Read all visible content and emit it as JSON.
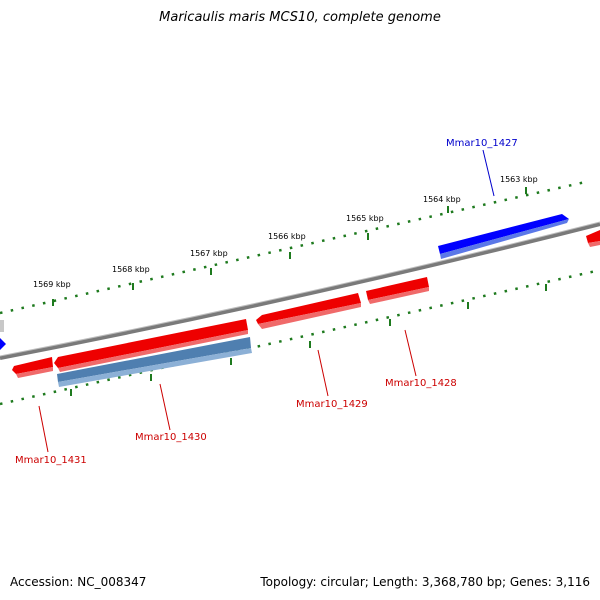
{
  "title": "Maricaulis maris MCS10, complete genome",
  "footer": {
    "accession": "Accession: NC_008347",
    "summary": "Topology: circular; Length: 3,368,780 bp; Genes: 3,116"
  },
  "ticks": {
    "labels": [
      "1563 kbp",
      "1564 kbp",
      "1565 kbp",
      "1566 kbp",
      "1567 kbp",
      "1568 kbp",
      "1569 kbp"
    ]
  },
  "genes": [
    {
      "id": "Mmar10_1427",
      "label": "Mmar10_1427",
      "color": "#0000cc",
      "fill": "#0000ff"
    },
    {
      "id": "Mmar10_1428",
      "label": "Mmar10_1428",
      "color": "#cc0000",
      "fill": "#ee0000"
    },
    {
      "id": "Mmar10_1429",
      "label": "Mmar10_1429",
      "color": "#cc0000",
      "fill": "#ee0000"
    },
    {
      "id": "Mmar10_1430",
      "label": "Mmar10_1430",
      "color": "#cc0000",
      "fill": "#4f7fb0"
    },
    {
      "id": "Mmar10_1431",
      "label": "Mmar10_1431",
      "color": "#cc0000",
      "fill": "#ee0000"
    }
  ],
  "colors": {
    "backbone": "#808080",
    "tick": "#1e7a1e",
    "forward_gene": "#0000ff",
    "reverse_gene": "#ee0000",
    "rna_gene": "#4f7fb0"
  }
}
